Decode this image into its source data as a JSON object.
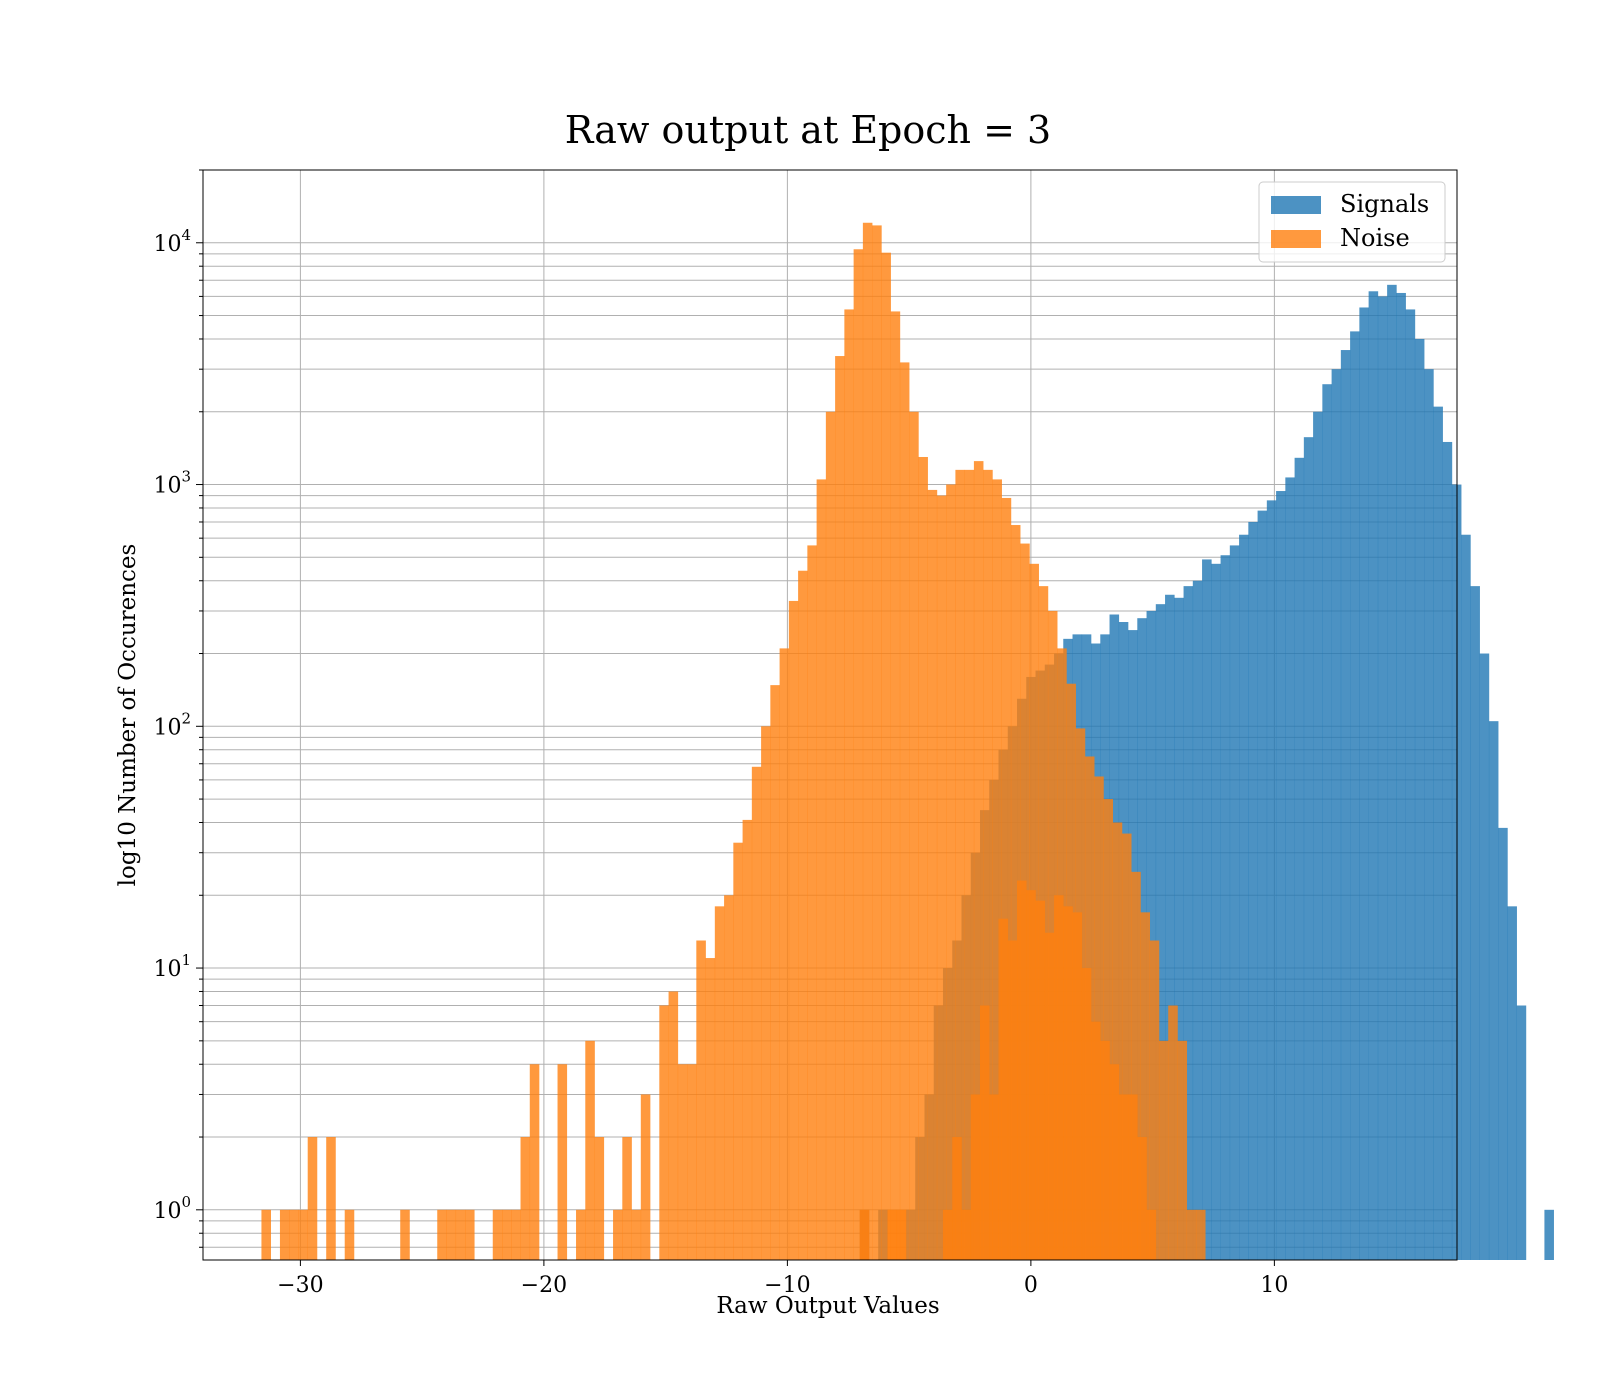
{
  "chart_data": {
    "type": "histogram",
    "title": "Raw output at Epoch = 3",
    "xlabel": "Raw Output Values",
    "ylabel": "log10 Number of Occurences",
    "x_scale": "linear",
    "y_scale": "log",
    "xlim": [
      -34,
      17.5
    ],
    "ylim": [
      0.62,
      20000
    ],
    "x_ticks": [
      -30,
      -20,
      -10,
      0,
      10
    ],
    "x_tick_labels": [
      "−30",
      "−20",
      "−10",
      "0",
      "10"
    ],
    "y_ticks": [
      {
        "base": "10",
        "exp": "0",
        "value": 1
      },
      {
        "base": "10",
        "exp": "1",
        "value": 10
      },
      {
        "base": "10",
        "exp": "2",
        "value": 100
      },
      {
        "base": "10",
        "exp": "3",
        "value": 1000
      },
      {
        "base": "10",
        "exp": "4",
        "value": 10000
      }
    ],
    "grid": true,
    "legend": {
      "position": "top-right"
    },
    "series": [
      {
        "name": "Signals",
        "color": "#1f77b4",
        "alpha": 0.8,
        "bin_start": -7.03,
        "bin_width": 0.38,
        "values": [
          1,
          0,
          1,
          0,
          0,
          1,
          2,
          3,
          7,
          10,
          13,
          20,
          30,
          45,
          60,
          80,
          100,
          130,
          160,
          170,
          180,
          200,
          230,
          240,
          240,
          220,
          240,
          290,
          270,
          250,
          280,
          300,
          320,
          350,
          340,
          380,
          400,
          490,
          470,
          510,
          560,
          620,
          700,
          780,
          860,
          940,
          1070,
          1290,
          1570,
          2000,
          2600,
          3000,
          3600,
          4300,
          5400,
          6300,
          6000,
          6700,
          6200,
          5300,
          4000,
          3000,
          2100,
          1500,
          1000,
          620,
          380,
          200,
          105,
          38,
          18,
          7,
          0,
          0,
          1
        ]
      },
      {
        "name": "Noise",
        "color": "#ff7f0e",
        "alpha": 0.8,
        "bin_start": -31.6,
        "bin_width": 0.38,
        "values": [
          1,
          0,
          1,
          1,
          1,
          2,
          0,
          2,
          0,
          1,
          0,
          0,
          0,
          0,
          0,
          1,
          0,
          0,
          0,
          1,
          1,
          1,
          1,
          0,
          0,
          1,
          1,
          1,
          2,
          4,
          0,
          0,
          4,
          0,
          1,
          5,
          2,
          0,
          1,
          2,
          1,
          3,
          0,
          7,
          8,
          4,
          4,
          13,
          11,
          18,
          20,
          33,
          41,
          68,
          100,
          148,
          210,
          330,
          440,
          560,
          1050,
          2000,
          3400,
          5300,
          9400,
          12100,
          11800,
          9100,
          5200,
          3200,
          2000,
          1300,
          950,
          900,
          1000,
          1150,
          1150,
          1250,
          1150,
          1050,
          880,
          680,
          570,
          470,
          380,
          300,
          210,
          150,
          98,
          75,
          62,
          50,
          40,
          36,
          25,
          17,
          13,
          5,
          7,
          5,
          1,
          1
        ]
      },
      {
        "name": "",
        "color": "#ff7f0e",
        "alpha": 0.8,
        "bin_start": -7.03,
        "bin_width": 0.38,
        "values": [
          1,
          0,
          0,
          1,
          1,
          0,
          0,
          0,
          0,
          1,
          2,
          1,
          3,
          7,
          3,
          16,
          13,
          23,
          21,
          19,
          14,
          20,
          18,
          17,
          10,
          6,
          5,
          4,
          3,
          3,
          2,
          1,
          0,
          0,
          0,
          0,
          0
        ]
      }
    ]
  }
}
